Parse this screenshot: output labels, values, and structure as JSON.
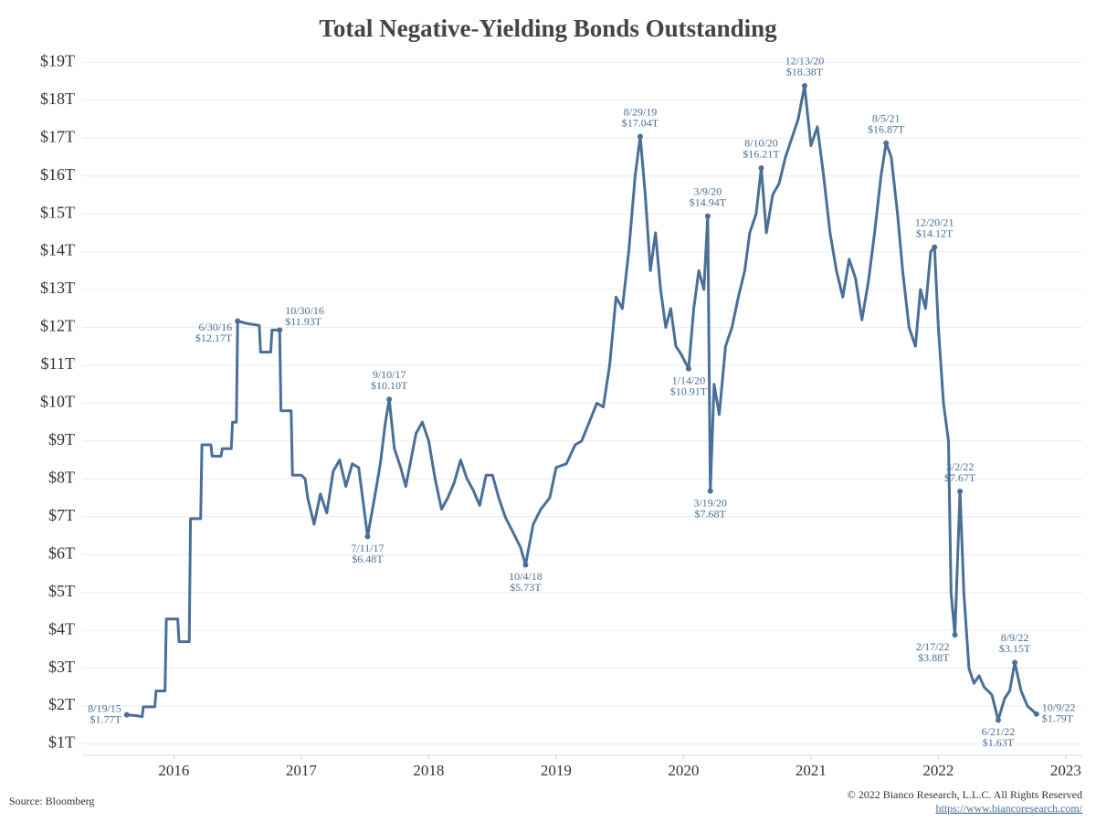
{
  "chart_data": {
    "type": "line",
    "title": "Total Negative-Yielding Bonds Outstanding",
    "color": "#4a6f98",
    "grid": true,
    "x": [
      2015.63,
      2015.7,
      2015.75,
      2015.76,
      2015.85,
      2015.86,
      2015.93,
      2015.94,
      2016.03,
      2016.04,
      2016.12,
      2016.13,
      2016.21,
      2016.22,
      2016.29,
      2016.3,
      2016.37,
      2016.38,
      2016.45,
      2016.46,
      2016.49,
      2016.5,
      2016.58,
      2016.67,
      2016.68,
      2016.76,
      2016.77,
      2016.83,
      2016.84,
      2016.92,
      2016.93,
      2017.0,
      2017.03,
      2017.05,
      2017.1,
      2017.15,
      2017.2,
      2017.25,
      2017.3,
      2017.35,
      2017.4,
      2017.45,
      2017.52,
      2017.58,
      2017.62,
      2017.66,
      2017.69,
      2017.73,
      2017.78,
      2017.82,
      2017.86,
      2017.9,
      2017.95,
      2018.0,
      2018.05,
      2018.1,
      2018.15,
      2018.2,
      2018.25,
      2018.3,
      2018.35,
      2018.4,
      2018.45,
      2018.5,
      2018.55,
      2018.6,
      2018.66,
      2018.72,
      2018.76,
      2018.82,
      2018.88,
      2018.95,
      2019.0,
      2019.08,
      2019.15,
      2019.2,
      2019.26,
      2019.32,
      2019.37,
      2019.42,
      2019.47,
      2019.52,
      2019.57,
      2019.62,
      2019.66,
      2019.7,
      2019.74,
      2019.78,
      2019.82,
      2019.86,
      2019.9,
      2019.94,
      2019.98,
      2020.04,
      2020.08,
      2020.12,
      2020.16,
      2020.19,
      2020.21,
      2020.24,
      2020.28,
      2020.33,
      2020.38,
      2020.43,
      2020.48,
      2020.52,
      2020.57,
      2020.61,
      2020.65,
      2020.7,
      2020.75,
      2020.8,
      2020.85,
      2020.9,
      2020.95,
      2021.0,
      2021.05,
      2021.1,
      2021.15,
      2021.2,
      2021.25,
      2021.3,
      2021.35,
      2021.4,
      2021.45,
      2021.5,
      2021.55,
      2021.59,
      2021.63,
      2021.68,
      2021.72,
      2021.77,
      2021.82,
      2021.86,
      2021.9,
      2021.94,
      2021.97,
      2022.0,
      2022.04,
      2022.08,
      2022.1,
      2022.13,
      2022.17,
      2022.2,
      2022.24,
      2022.28,
      2022.32,
      2022.36,
      2022.42,
      2022.47,
      2022.52,
      2022.56,
      2022.6,
      2022.65,
      2022.7,
      2022.77
    ],
    "values": [
      1.77,
      1.75,
      1.72,
      1.98,
      1.98,
      2.4,
      2.4,
      4.3,
      4.3,
      3.7,
      3.7,
      6.95,
      6.95,
      8.9,
      8.9,
      8.6,
      8.6,
      8.8,
      8.8,
      9.5,
      9.5,
      12.17,
      12.1,
      12.05,
      11.35,
      11.35,
      11.93,
      11.93,
      9.8,
      9.8,
      8.1,
      8.1,
      8.0,
      7.5,
      6.8,
      7.6,
      7.1,
      8.2,
      8.5,
      7.8,
      8.4,
      8.3,
      6.48,
      7.6,
      8.4,
      9.5,
      10.1,
      8.8,
      8.3,
      7.8,
      8.5,
      9.2,
      9.5,
      9.0,
      8.0,
      7.2,
      7.5,
      7.9,
      8.5,
      8.0,
      7.7,
      7.3,
      8.1,
      8.1,
      7.5,
      7.0,
      6.6,
      6.2,
      5.73,
      6.8,
      7.2,
      7.5,
      8.3,
      8.4,
      8.9,
      9.0,
      9.5,
      10.0,
      9.9,
      11.0,
      12.8,
      12.5,
      14.0,
      16.0,
      17.04,
      15.5,
      13.5,
      14.5,
      13.0,
      12.0,
      12.5,
      11.5,
      11.3,
      10.91,
      12.5,
      13.5,
      13.0,
      14.94,
      7.68,
      10.5,
      9.7,
      11.5,
      12.0,
      12.8,
      13.5,
      14.5,
      15.0,
      16.21,
      14.5,
      15.5,
      15.8,
      16.5,
      17.0,
      17.5,
      18.38,
      16.8,
      17.3,
      16.0,
      14.5,
      13.5,
      12.8,
      13.8,
      13.3,
      12.2,
      13.2,
      14.5,
      16.0,
      16.87,
      16.5,
      15.0,
      13.5,
      12.0,
      11.5,
      13.0,
      12.5,
      14.0,
      14.12,
      12.0,
      10.0,
      9.0,
      5.0,
      3.88,
      7.67,
      5.0,
      3.0,
      2.6,
      2.8,
      2.5,
      2.3,
      1.63,
      2.2,
      2.4,
      3.15,
      2.4,
      2.0,
      1.79
    ],
    "xlim": [
      2015.28,
      2023.13
    ],
    "xticks": [
      2016,
      2017,
      2018,
      2019,
      2020,
      2021,
      2022,
      2023
    ],
    "ylim": [
      0.7,
      19.2
    ],
    "yticks": [
      {
        "value": 1,
        "label": "$1T"
      },
      {
        "value": 2,
        "label": "$2T"
      },
      {
        "value": 3,
        "label": "$3T"
      },
      {
        "value": 4,
        "label": "$4T"
      },
      {
        "value": 5,
        "label": "$5T"
      },
      {
        "value": 6,
        "label": "$6T"
      },
      {
        "value": 7,
        "label": "$7T"
      },
      {
        "value": 8,
        "label": "$8T"
      },
      {
        "value": 9,
        "label": "$9T"
      },
      {
        "value": 10,
        "label": "$10T"
      },
      {
        "value": 11,
        "label": "$11T"
      },
      {
        "value": 12,
        "label": "$12T"
      },
      {
        "value": 13,
        "label": "$13T"
      },
      {
        "value": 14,
        "label": "$14T"
      },
      {
        "value": 15,
        "label": "$15T"
      },
      {
        "value": 16,
        "label": "$16T"
      },
      {
        "value": 17,
        "label": "$17T"
      },
      {
        "value": 18,
        "label": "$18T"
      },
      {
        "value": 19,
        "label": "$19T"
      }
    ],
    "annotations": [
      {
        "date": "8/19/15",
        "label": "$1.77T",
        "x": 2015.63,
        "y": 1.77
      },
      {
        "date": "6/30/16",
        "label": "$12.17T",
        "x": 2016.5,
        "y": 12.17
      },
      {
        "date": "10/30/16",
        "label": "$11.93T",
        "x": 2016.83,
        "y": 11.93
      },
      {
        "date": "9/10/17",
        "label": "$10.10T",
        "x": 2017.69,
        "y": 10.1
      },
      {
        "date": "7/11/17",
        "label": "$6.48T",
        "x": 2017.52,
        "y": 6.48
      },
      {
        "date": "10/4/18",
        "label": "$5.73T",
        "x": 2018.76,
        "y": 5.73
      },
      {
        "date": "8/29/19",
        "label": "$17.04T",
        "x": 2019.66,
        "y": 17.04
      },
      {
        "date": "1/14/20",
        "label": "$10.91T",
        "x": 2020.04,
        "y": 10.91
      },
      {
        "date": "3/9/20",
        "label": "$14.94T",
        "x": 2020.19,
        "y": 14.94
      },
      {
        "date": "3/19/20",
        "label": "$7.68T",
        "x": 2020.21,
        "y": 7.68
      },
      {
        "date": "8/10/20",
        "label": "$16.21T",
        "x": 2020.61,
        "y": 16.21
      },
      {
        "date": "12/13/20",
        "label": "$18.38T",
        "x": 2020.95,
        "y": 18.38
      },
      {
        "date": "8/5/21",
        "label": "$16.87T",
        "x": 2021.59,
        "y": 16.87
      },
      {
        "date": "12/20/21",
        "label": "$14.12T",
        "x": 2021.97,
        "y": 14.12
      },
      {
        "date": "2/17/22",
        "label": "$3.88T",
        "x": 2022.13,
        "y": 3.88
      },
      {
        "date": "3/2/22",
        "label": "$7.67T",
        "x": 2022.17,
        "y": 7.67
      },
      {
        "date": "6/21/22",
        "label": "$1.63T",
        "x": 2022.47,
        "y": 1.63
      },
      {
        "date": "8/9/22",
        "label": "$3.15T",
        "x": 2022.6,
        "y": 3.15
      },
      {
        "date": "10/9/22",
        "label": "$1.79T",
        "x": 2022.77,
        "y": 1.79
      }
    ],
    "source": "Source: Bloomberg",
    "copyright": "© 2022 Bianco Research, L.L.C. All Rights Reserved",
    "url": "https://www.biancoresearch.com/"
  }
}
